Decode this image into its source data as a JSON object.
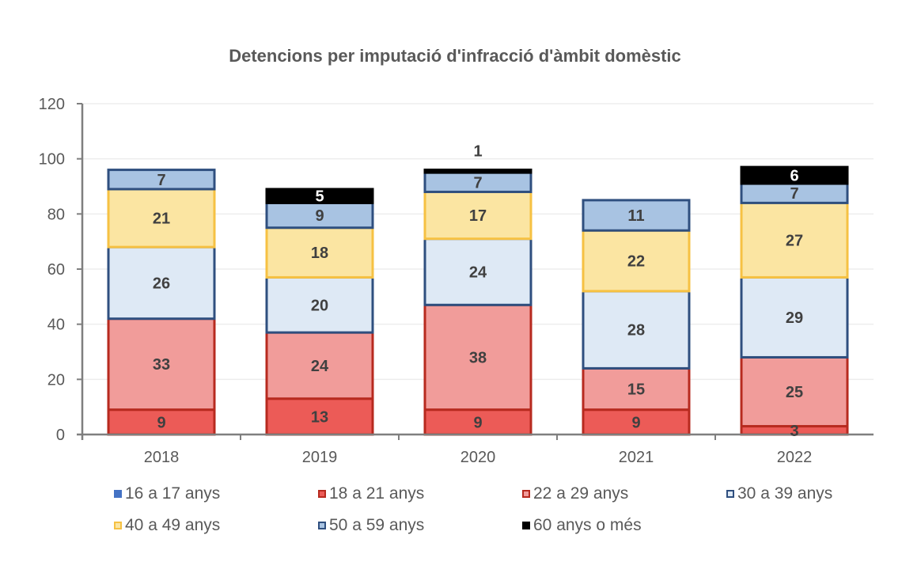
{
  "chart_data": {
    "type": "bar",
    "stacked": true,
    "title": "Detencions per imputació d'infracció d'àmbit domèstic",
    "xlabel": "",
    "ylabel": "",
    "ylim": [
      0,
      120
    ],
    "yticks": [
      0,
      20,
      40,
      60,
      80,
      100,
      120
    ],
    "grid": true,
    "legend_position": "bottom",
    "categories": [
      "2018",
      "2019",
      "2020",
      "2021",
      "2022"
    ],
    "series": [
      {
        "name": "16 a 17 anys",
        "fill": "#4472C4",
        "stroke": "#4472C4",
        "label_color": "#404040",
        "values": [
          0,
          0,
          0,
          0,
          0
        ]
      },
      {
        "name": "18 a 21 anys",
        "fill": "#EC5B57",
        "stroke": "#B72A1F",
        "label_color": "#404040",
        "values": [
          9,
          13,
          9,
          9,
          3
        ]
      },
      {
        "name": "22 a 29 anys",
        "fill": "#F19C9A",
        "stroke": "#B72A1F",
        "label_color": "#404040",
        "values": [
          33,
          24,
          38,
          15,
          25
        ]
      },
      {
        "name": "30 a 39 anys",
        "fill": "#DEE9F5",
        "stroke": "#2F4F7F",
        "label_color": "#404040",
        "values": [
          26,
          20,
          24,
          28,
          29
        ]
      },
      {
        "name": "40 a 49 anys",
        "fill": "#FBE5A2",
        "stroke": "#F6C143",
        "label_color": "#404040",
        "values": [
          21,
          18,
          17,
          22,
          27
        ]
      },
      {
        "name": "50 a 59 anys",
        "fill": "#A8C3E2",
        "stroke": "#2F4F7F",
        "label_color": "#404040",
        "values": [
          7,
          9,
          7,
          11,
          7
        ]
      },
      {
        "name": "60 anys o més",
        "fill": "#000000",
        "stroke": "#000000",
        "label_color": "#ffffff",
        "values": [
          0,
          5,
          1,
          0,
          6
        ]
      }
    ]
  },
  "legend": [
    {
      "label": "16 a 17 anys"
    },
    {
      "label": "18 a 21 anys"
    },
    {
      "label": "22 a 29 anys"
    },
    {
      "label": "30 a 39 anys"
    },
    {
      "label": "40 a 49 anys"
    },
    {
      "label": "50 a 59 anys"
    },
    {
      "label": "60 anys o més"
    }
  ]
}
